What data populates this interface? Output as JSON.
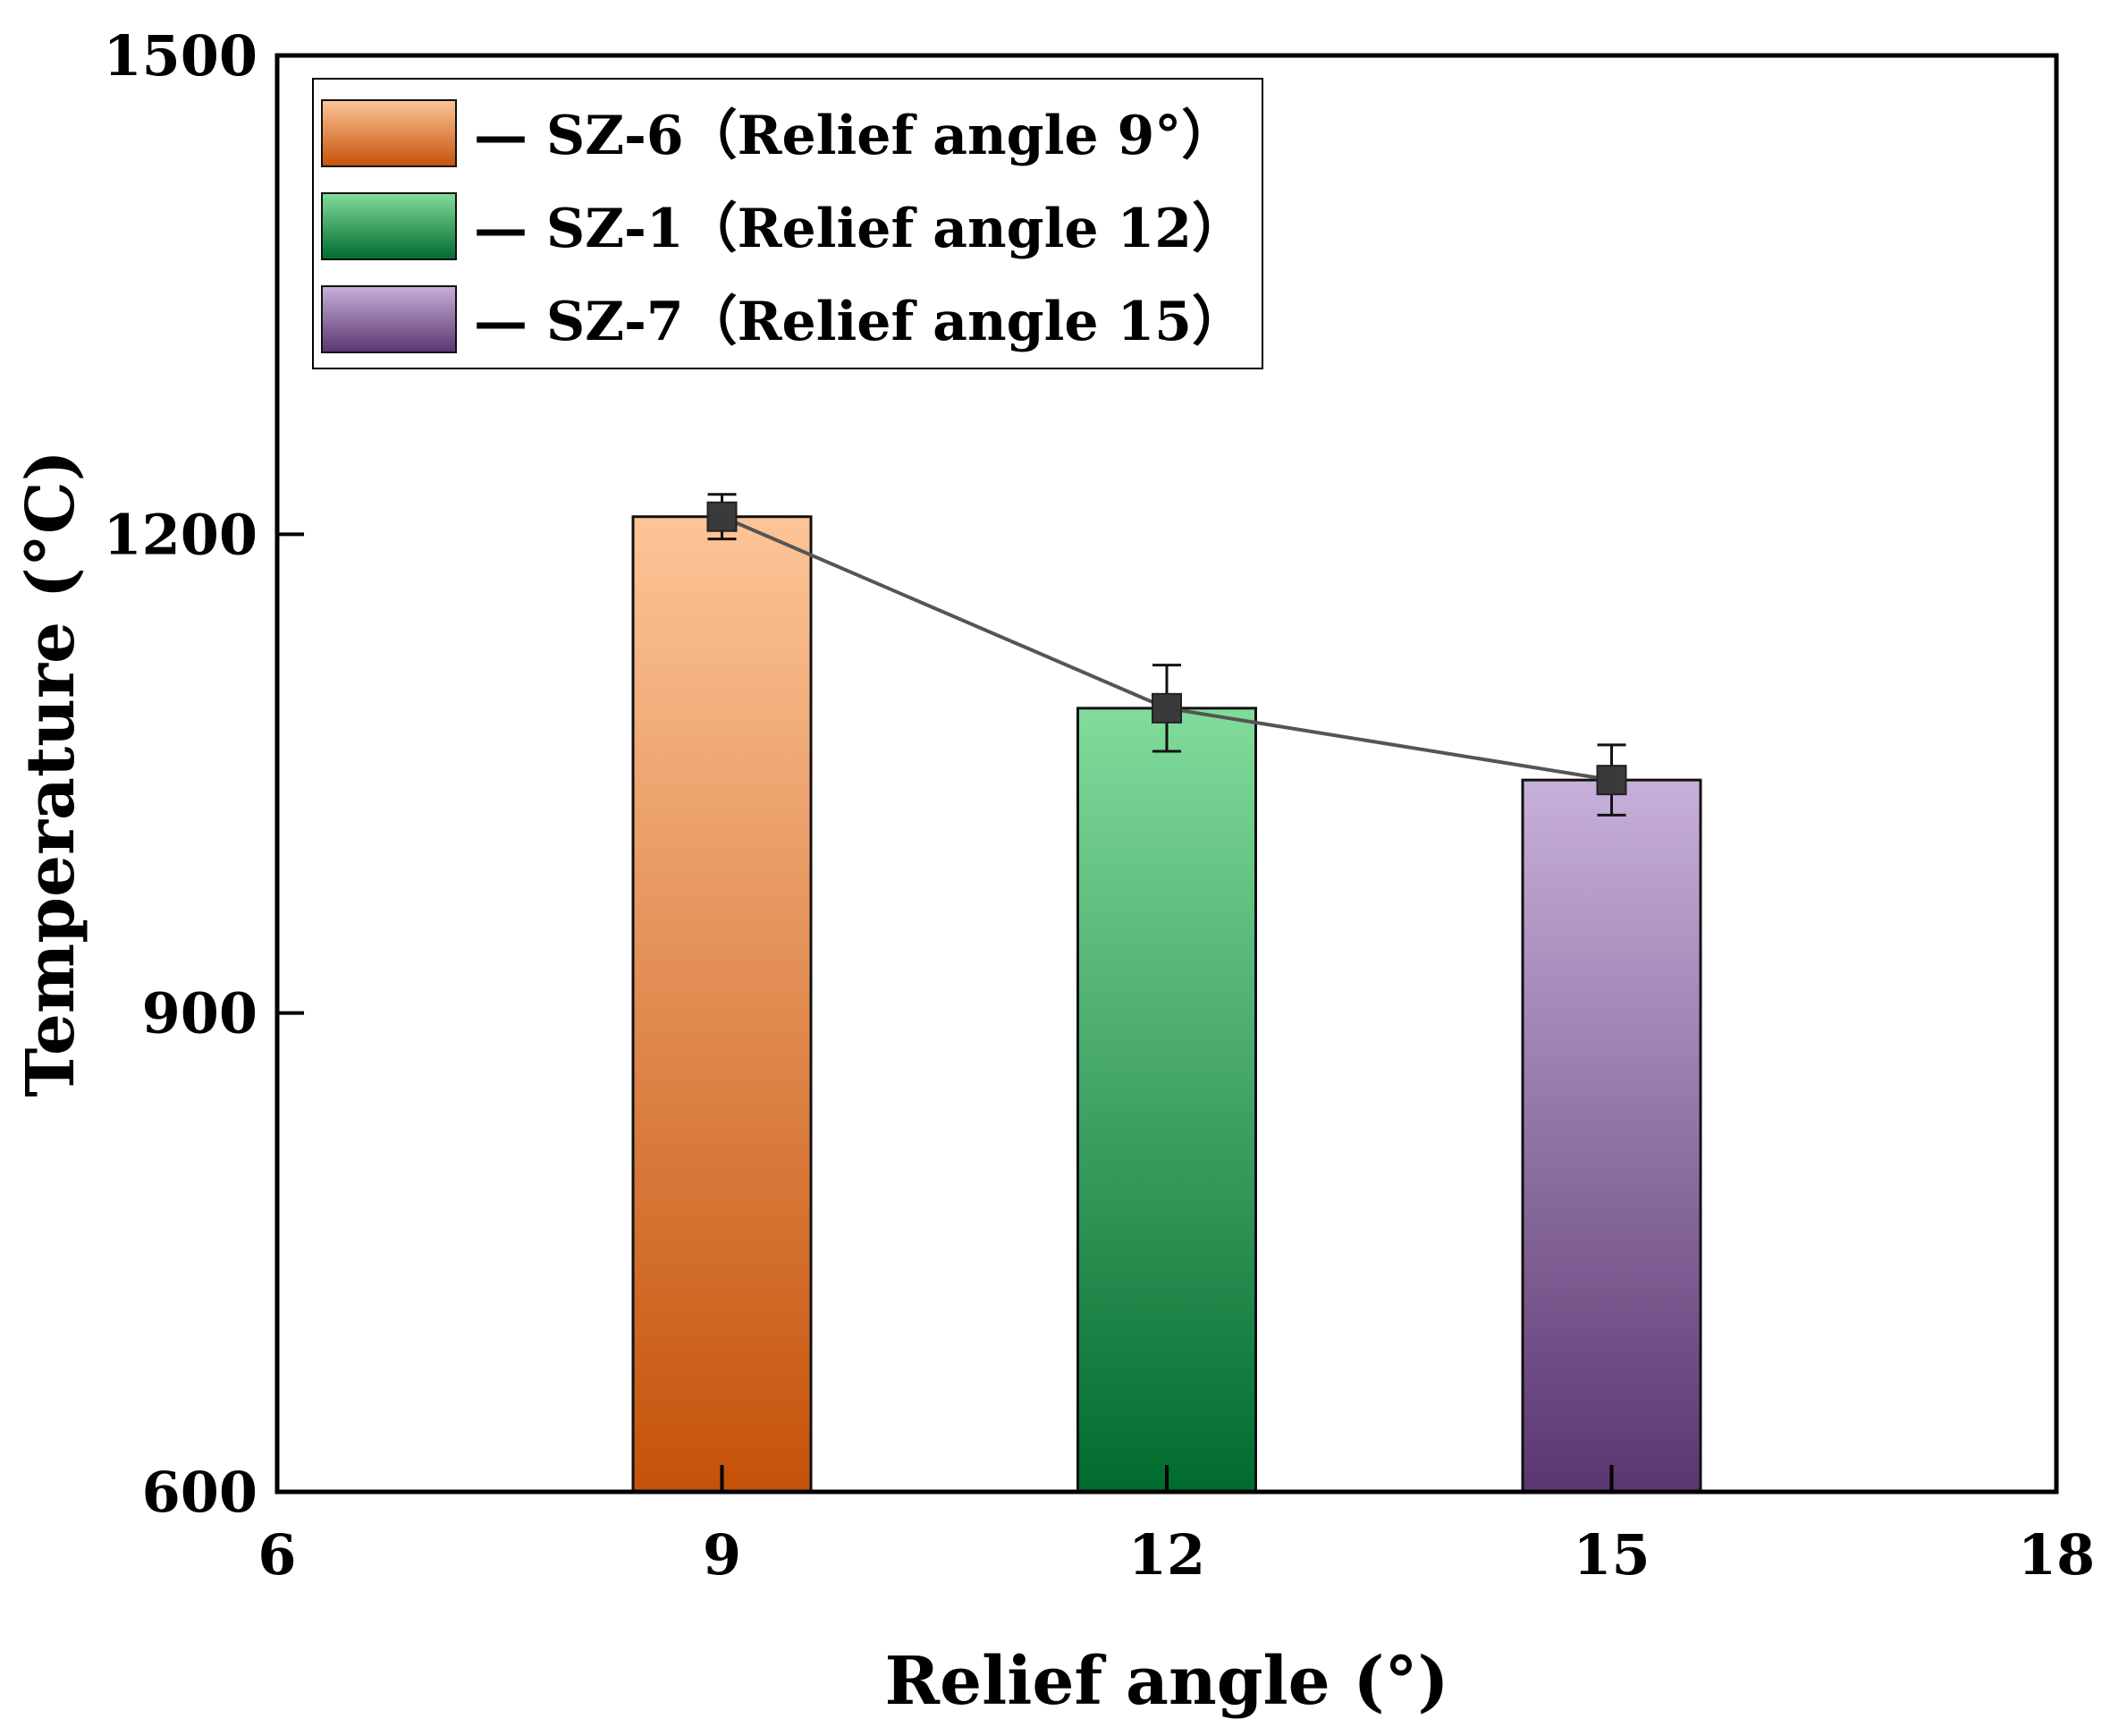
{
  "chart_data": {
    "type": "bar",
    "title": "",
    "xlabel": "Relief angle (°)",
    "ylabel": "Temperature (°C)",
    "xlim": [
      6,
      18
    ],
    "ylim": [
      600,
      1500
    ],
    "xticks": [
      6,
      9,
      12,
      15,
      18
    ],
    "xtick_labels": [
      "6",
      "9",
      "12",
      "15",
      "18"
    ],
    "yticks": [
      600,
      900,
      1200,
      1500
    ],
    "ytick_labels": [
      "600",
      "900",
      "1200",
      "1500"
    ],
    "bar_width": 1.2,
    "bars": [
      {
        "name": "SZ-6",
        "x": 9,
        "value": 1211,
        "error": 14,
        "color_top": "#fdc598",
        "color_bottom": "#c55209",
        "legend_label": "— SZ-6（Relief angle 9°）"
      },
      {
        "name": "SZ-1",
        "x": 12,
        "value": 1091,
        "error": 27,
        "color_top": "#82dc9c",
        "color_bottom": "#006b2e",
        "legend_label": "— SZ-1（Relief angle 12）"
      },
      {
        "name": "SZ-7",
        "x": 15,
        "value": 1046,
        "error": 22,
        "color_top": "#c7b0da",
        "color_bottom": "#5a3670",
        "legend_label": "— SZ-7（Relief angle 15）"
      }
    ],
    "line": {
      "color": "#555555",
      "marker": "square",
      "marker_color": "#3a3a3a"
    },
    "legend_position": "top-left"
  }
}
